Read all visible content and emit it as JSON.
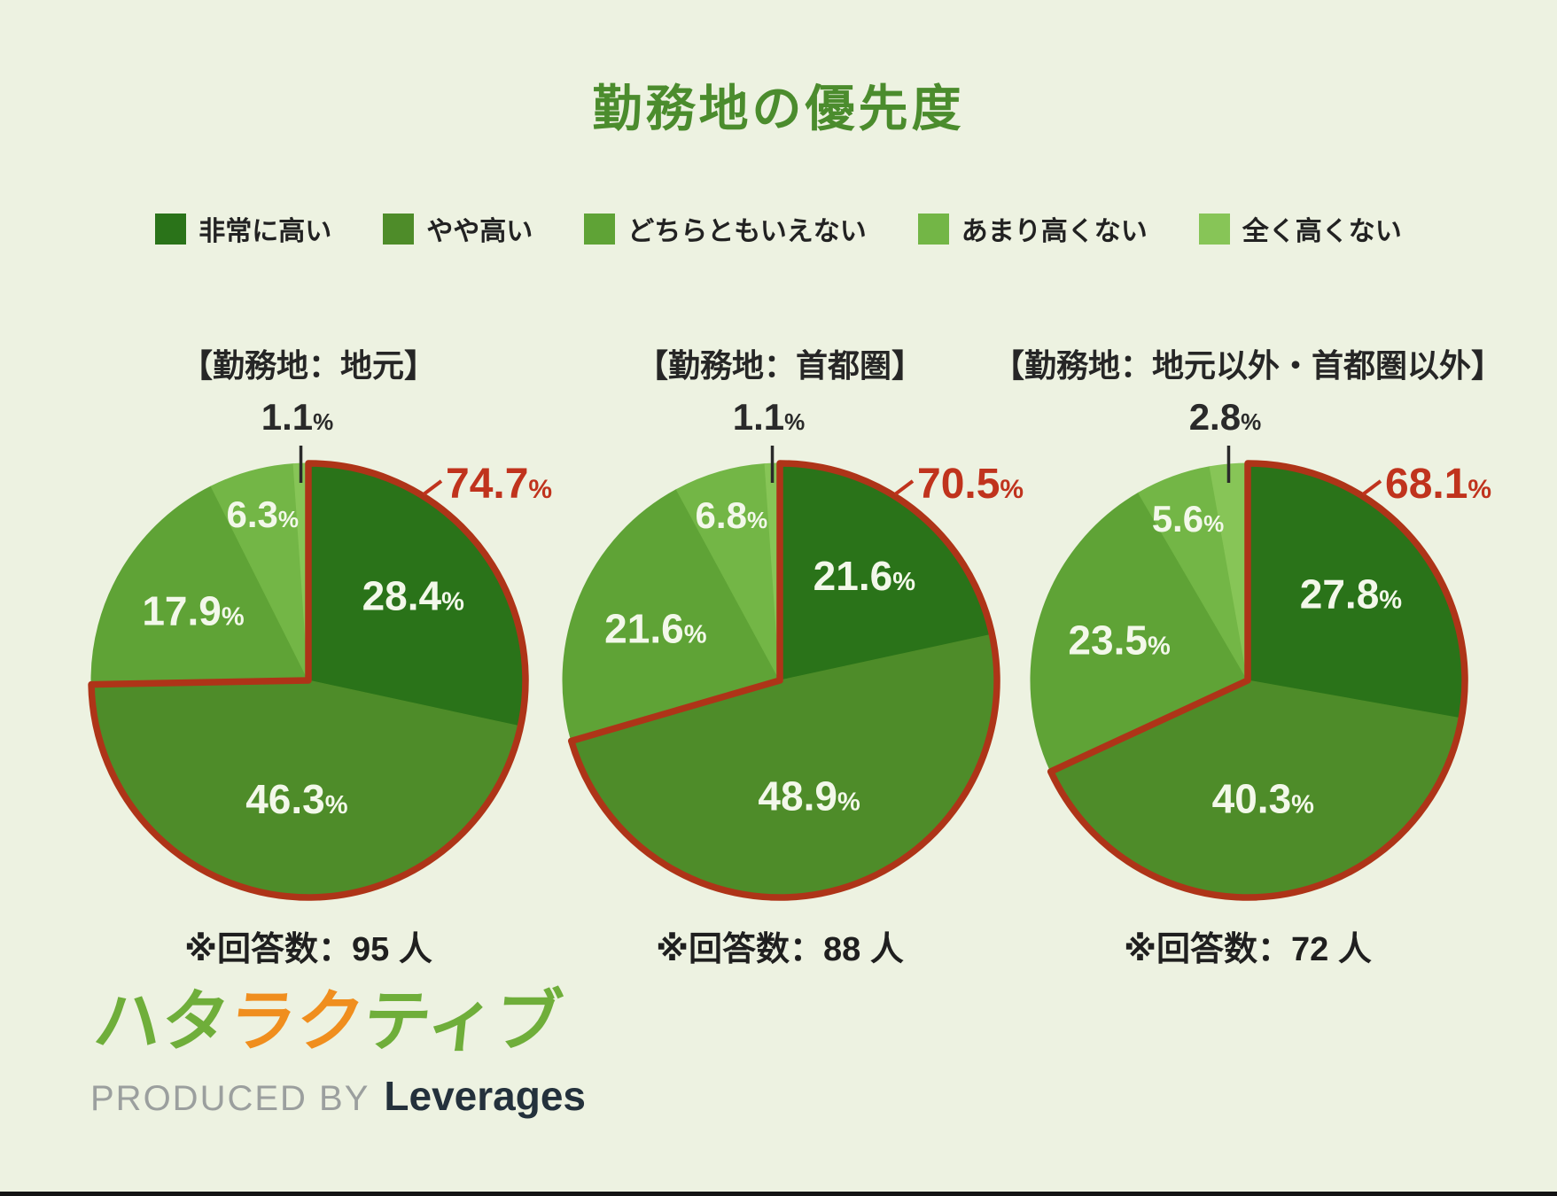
{
  "page": {
    "title": "勤務地の優先度",
    "background_color": "#edf2e1",
    "title_color": "#4b8c2d",
    "bottom_bar_color": "#141414"
  },
  "legend": {
    "items": [
      {
        "label": "非常に高い",
        "color": "#2a7319"
      },
      {
        "label": "やや高い",
        "color": "#4e8c29"
      },
      {
        "label": "どちらともいえない",
        "color": "#5fa336"
      },
      {
        "label": "あまり高くない",
        "color": "#73b646"
      },
      {
        "label": "全く高くない",
        "color": "#87c557"
      }
    ]
  },
  "chart_data": {
    "type": "pie",
    "title": "勤務地の優先度",
    "legend_position": "top",
    "categories": [
      "非常に高い",
      "やや高い",
      "どちらともいえない",
      "あまり高くない",
      "全く高くない"
    ],
    "colors": [
      "#2a7319",
      "#4e8c29",
      "#5fa336",
      "#73b646",
      "#87c557"
    ],
    "highlight_outline_color": "#ae3418",
    "highlight_label_color": "#c0331d",
    "slice_label_color": "#f3f8ea",
    "outside_label_color": "#2a2a2a",
    "percent_unit": "%",
    "charts": [
      {
        "title": "【勤務地：地元】",
        "values": [
          28.4,
          46.3,
          17.9,
          6.3,
          1.1
        ],
        "highlighted_slices": [
          0,
          1
        ],
        "highlight_total_label": "74.7",
        "note": "※回答数：95 人"
      },
      {
        "title": "【勤務地：首都圏】",
        "values": [
          21.6,
          48.9,
          21.6,
          6.8,
          1.1
        ],
        "highlighted_slices": [
          0,
          1
        ],
        "highlight_total_label": "70.5",
        "note": "※回答数：88 人"
      },
      {
        "title": "【勤務地：地元以外・首都圏以外】",
        "values": [
          27.8,
          40.3,
          23.5,
          5.6,
          2.8
        ],
        "highlighted_slices": [
          0,
          1
        ],
        "highlight_total_label": "68.1",
        "note": "※回答数：72 人"
      }
    ]
  },
  "footer": {
    "logo_chars": [
      {
        "char": "ハ",
        "color": "#6fae3a"
      },
      {
        "char": "タ",
        "color": "#6fae3a"
      },
      {
        "char": "ラ",
        "color": "#f08e1e"
      },
      {
        "char": "ク",
        "color": "#f08e1e"
      },
      {
        "char": "テ",
        "color": "#6fae3a"
      },
      {
        "char": "ィ",
        "color": "#6fae3a"
      },
      {
        "char": "ブ",
        "color": "#6fae3a"
      }
    ],
    "produced_by": "PRODUCED BY",
    "brand": "Leverages"
  }
}
